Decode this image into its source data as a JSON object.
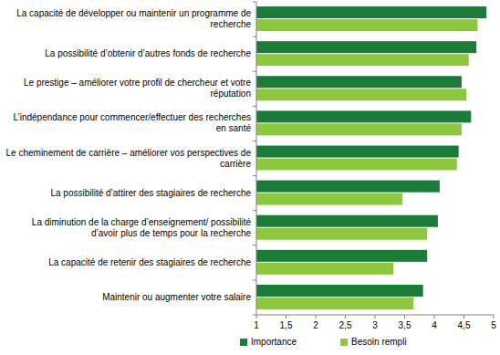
{
  "chart_data": {
    "type": "bar",
    "orientation": "horizontal",
    "categories": [
      "La capacité de développer ou maintenir un programme de recherche",
      "La possibilité d’obtenir d’autres fonds de recherche",
      "Le prestige – améliorer votre profil de chercheur et votre réputation",
      "L’indépendance pour commencer/effectuer des recherches en santé",
      "Le cheminement de carrière – améliorer vos perspectives de carrière",
      "La possibilité d’attirer des stagiaires de recherche",
      "La diminution de la charge d’enseignement/ possibilité d’avoir plus de temps pour la recherche",
      "La capacité de retenir des stagiaires de recherche",
      "Maintenir ou augmenter votre salaire"
    ],
    "series": [
      {
        "name": "Importance",
        "color": "#1b7c3a",
        "values": [
          4.88,
          4.71,
          4.46,
          4.62,
          4.41,
          4.09,
          4.06,
          3.88,
          3.81
        ]
      },
      {
        "name": "Besoin rempli",
        "color": "#8dc63f",
        "values": [
          4.73,
          4.58,
          4.54,
          4.46,
          4.38,
          3.46,
          3.88,
          3.31,
          3.65
        ]
      }
    ],
    "xlim": [
      1,
      5
    ],
    "xticks": [
      1,
      {
        "value": 1.5,
        "label": "1,5"
      },
      2,
      {
        "value": 2.5,
        "label": "2,5"
      },
      3,
      {
        "value": 3.5,
        "label": "3,5"
      },
      4,
      {
        "value": 4.5,
        "label": "4,5"
      },
      5
    ],
    "grid": false,
    "legend": "bottom"
  }
}
